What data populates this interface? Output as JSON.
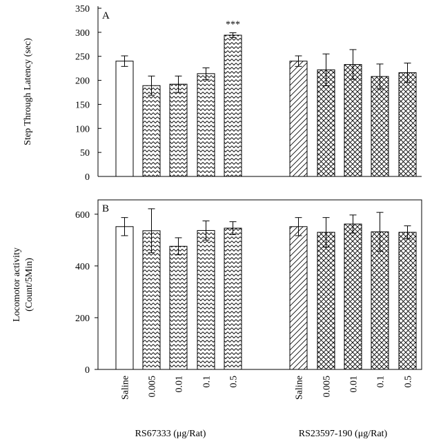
{
  "chart_data": [
    {
      "type": "bar",
      "panel_label": "A",
      "ylabel": "Step Through Latency (sec)",
      "ylim": [
        0,
        350
      ],
      "yticks": [
        0,
        50,
        100,
        150,
        200,
        250,
        300,
        350
      ],
      "axis_line": "left-bottom",
      "grid": false,
      "groups": [
        {
          "name": "RS67333 (μg/Rat)",
          "categories": [
            "Saline",
            "0.005",
            "0.01",
            "0.1",
            "0.5"
          ]
        },
        {
          "name": "RS23597-190 (μg/Rat)",
          "categories": [
            "Saline",
            "0.005",
            "0.01",
            "0.1",
            "0.5"
          ]
        }
      ],
      "values": [
        240,
        189,
        192,
        214,
        294,
        240,
        222,
        233,
        208,
        216
      ],
      "errors": [
        11,
        20,
        17,
        12,
        5,
        11,
        33,
        31,
        26,
        20
      ],
      "fills": [
        "open",
        "zigzag",
        "zigzag",
        "zigzag",
        "zigzag",
        "diagonal",
        "crosshatch",
        "crosshatch",
        "crosshatch",
        "crosshatch"
      ],
      "annotations": [
        {
          "bar": 4,
          "text": "***"
        }
      ]
    },
    {
      "type": "bar",
      "panel_label": "B",
      "ylabel": [
        "Locomotor activity",
        "(Count/5Min)"
      ],
      "ylim": [
        0,
        650
      ],
      "yticks": [
        0,
        200,
        400,
        600
      ],
      "axis_line": "box",
      "grid": false,
      "groups": [
        {
          "name": "RS67333 (μg/Rat)",
          "categories": [
            "Saline",
            "0.005",
            "0.01",
            "0.1",
            "0.5"
          ]
        },
        {
          "name": "RS23597-190 (μg/Rat)",
          "categories": [
            "Saline",
            "0.005",
            "0.01",
            "0.1",
            "0.5"
          ]
        }
      ],
      "values": [
        552,
        536,
        476,
        537,
        546,
        552,
        530,
        562,
        532,
        530
      ],
      "errors": [
        35,
        85,
        33,
        37,
        25,
        35,
        57,
        35,
        75,
        25
      ],
      "fills": [
        "open",
        "zigzag",
        "zigzag",
        "zigzag",
        "zigzag",
        "diagonal",
        "crosshatch",
        "crosshatch",
        "crosshatch",
        "crosshatch"
      ]
    }
  ],
  "colors": {
    "bar_stroke": "#000000",
    "pattern": "#000000",
    "background": "#ffffff"
  }
}
